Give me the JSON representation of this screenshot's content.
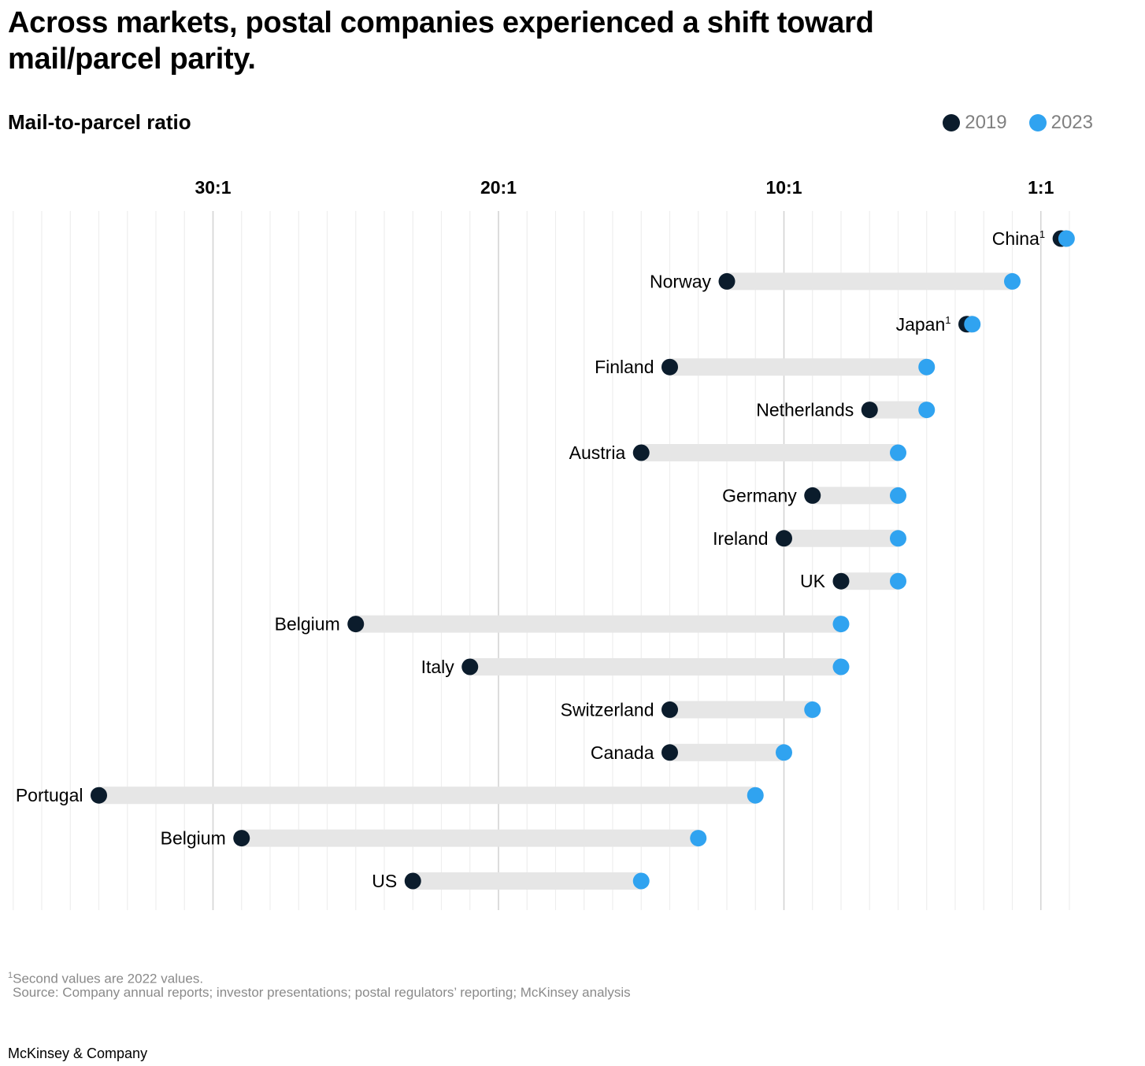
{
  "title": "Across markets, postal companies experienced a shift toward mail/parcel parity.",
  "subtitle": "Mail-to-parcel ratio",
  "legend": {
    "label_2019": "2019",
    "label_2023": "2023"
  },
  "colors": {
    "dot_2019": "#0b1c2c",
    "dot_2023": "#30a3f0",
    "bar": "#e6e6e6",
    "gridline_major": "#d4d4d4",
    "gridline_minor": "#eeeeee"
  },
  "footnote": {
    "marker": "1",
    "text": "Second values are 2022 values."
  },
  "source": "Source: Company annual reports; investor presentations; postal regulators’ reporting; McKinsey analysis",
  "brand": "McKinsey & Company",
  "chart_data": {
    "type": "dumbbell",
    "x_axis": {
      "description": "mail-to-parcel ratio; axis reversed, higher ratio on the left",
      "min": 0,
      "max": 37,
      "ticks": [
        {
          "label": "30:1",
          "value": 30
        },
        {
          "label": "20:1",
          "value": 20
        },
        {
          "label": "10:1",
          "value": 10
        },
        {
          "label": "1:1",
          "value": 1
        }
      ],
      "minor_step": 1
    },
    "series": [
      {
        "name": "2019"
      },
      {
        "name": "2023"
      }
    ],
    "rows": [
      {
        "label": "China",
        "footnote": "1",
        "v2019": 0.3,
        "v2023": 0.1
      },
      {
        "label": "Norway",
        "footnote": "",
        "v2019": 12.0,
        "v2023": 2.0
      },
      {
        "label": "Japan",
        "footnote": "1",
        "v2019": 3.6,
        "v2023": 3.4
      },
      {
        "label": "Finland",
        "footnote": "",
        "v2019": 14.0,
        "v2023": 5.0
      },
      {
        "label": "Netherlands",
        "footnote": "",
        "v2019": 7.0,
        "v2023": 5.0
      },
      {
        "label": "Austria",
        "footnote": "",
        "v2019": 15.0,
        "v2023": 6.0
      },
      {
        "label": "Germany",
        "footnote": "",
        "v2019": 9.0,
        "v2023": 6.0
      },
      {
        "label": "Ireland",
        "footnote": "",
        "v2019": 10.0,
        "v2023": 6.0
      },
      {
        "label": "UK",
        "footnote": "",
        "v2019": 8.0,
        "v2023": 6.0
      },
      {
        "label": "Belgium",
        "footnote": "",
        "v2019": 25.0,
        "v2023": 8.0
      },
      {
        "label": "Italy",
        "footnote": "",
        "v2019": 21.0,
        "v2023": 8.0
      },
      {
        "label": "Switzerland",
        "footnote": "",
        "v2019": 14.0,
        "v2023": 9.0
      },
      {
        "label": "Canada",
        "footnote": "",
        "v2019": 14.0,
        "v2023": 10.0
      },
      {
        "label": "Portugal",
        "footnote": "",
        "v2019": 34.0,
        "v2023": 11.0
      },
      {
        "label": "Belgium",
        "footnote": "",
        "v2019": 29.0,
        "v2023": 13.0
      },
      {
        "label": "US",
        "footnote": "",
        "v2019": 23.0,
        "v2023": 15.0
      }
    ]
  }
}
